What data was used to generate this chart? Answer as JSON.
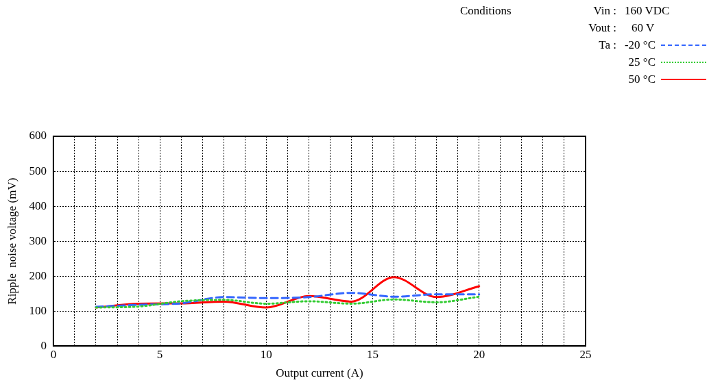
{
  "chart_data": {
    "type": "line",
    "xlabel": "Output current (A)",
    "ylabel": "Ripple  noise voltage (mV)",
    "annotations": [
      "Conditions",
      "Vin :",
      "160 VDC",
      "Vout :",
      "60 V",
      "Ta :"
    ],
    "x": [
      2,
      4,
      6,
      8,
      10,
      12,
      14,
      16,
      18,
      20
    ],
    "series": [
      {
        "name": "-20 °C",
        "color": "#3366ff",
        "line_style": "dashed",
        "values": [
          112,
          118,
          122,
          140,
          137,
          140,
          152,
          141,
          148,
          148
        ]
      },
      {
        "name": "25 °C",
        "color": "#33cc33",
        "line_style": "dotted",
        "values": [
          110,
          113,
          128,
          132,
          121,
          128,
          121,
          133,
          125,
          141
        ]
      },
      {
        "name": "50 °C",
        "color": "#ff0000",
        "line_style": "solid",
        "values": [
          110,
          121,
          122,
          127,
          110,
          143,
          127,
          197,
          140,
          171
        ]
      }
    ],
    "xlim": [
      0,
      25
    ],
    "xticks": [
      0,
      {
        "value": 1,
        "label": null
      },
      {
        "value": 2,
        "label": null
      },
      {
        "value": 3,
        "label": null
      },
      {
        "value": 4,
        "label": null
      },
      5,
      {
        "value": 6,
        "label": null
      },
      {
        "value": 7,
        "label": null
      },
      {
        "value": 8,
        "label": null
      },
      {
        "value": 9,
        "label": null
      },
      10,
      {
        "value": 11,
        "label": null
      },
      {
        "value": 12,
        "label": null
      },
      {
        "value": 13,
        "label": null
      },
      {
        "value": 14,
        "label": null
      },
      15,
      {
        "value": 16,
        "label": null
      },
      {
        "value": 17,
        "label": null
      },
      {
        "value": 18,
        "label": null
      },
      {
        "value": 19,
        "label": null
      },
      20,
      {
        "value": 21,
        "label": null
      },
      {
        "value": 22,
        "label": null
      },
      {
        "value": 23,
        "label": null
      },
      {
        "value": 24,
        "label": null
      },
      25
    ],
    "ylim": [
      0,
      600
    ],
    "yticks": [
      0,
      100,
      200,
      300,
      400,
      500,
      600
    ],
    "grid": true,
    "legend": "top right",
    "marker": "none"
  }
}
